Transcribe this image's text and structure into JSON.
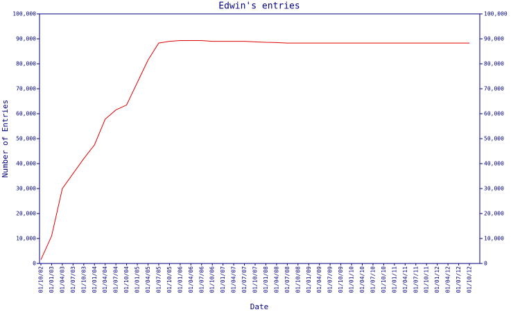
{
  "chart_data": {
    "type": "line",
    "title": "Edwin's entries",
    "x_label": "Date",
    "y_label": "Number of Entries",
    "categories": [
      "01/10/02",
      "01/01/03",
      "01/04/03",
      "01/07/03",
      "01/10/03",
      "01/01/04",
      "01/04/04",
      "01/07/04",
      "01/10/04",
      "01/01/05",
      "01/04/05",
      "01/07/05",
      "01/10/05",
      "01/01/06",
      "01/04/06",
      "01/07/06",
      "01/10/06",
      "01/01/07",
      "01/04/07",
      "01/07/07",
      "01/10/07",
      "01/01/08",
      "01/04/08",
      "01/07/08",
      "01/10/08",
      "01/01/09",
      "01/04/09",
      "01/07/09",
      "01/10/09",
      "01/01/10",
      "01/04/10",
      "01/07/10",
      "01/10/10",
      "01/01/11",
      "01/04/11",
      "01/07/11",
      "01/10/11",
      "01/01/12",
      "01/04/12",
      "01/07/12",
      "01/10/12"
    ],
    "series": [
      {
        "name": "entries",
        "color": "#e00000",
        "values": [
          1500,
          11000,
          30000,
          36000,
          42000,
          47500,
          57800,
          61500,
          63500,
          72500,
          81500,
          88300,
          89000,
          89300,
          89300,
          89300,
          89000,
          89000,
          89000,
          89000,
          88800,
          88600,
          88500,
          88300,
          88300,
          88300,
          88300,
          88300,
          88300,
          88300,
          88300,
          88300,
          88300,
          88300,
          88300,
          88300,
          88300,
          88300,
          88300,
          88300,
          88300
        ]
      }
    ],
    "ylim": [
      0,
      100000
    ],
    "yticks": [
      0,
      {
        "value": 10000,
        "label": "10,000"
      },
      {
        "value": 20000,
        "label": "20,000"
      },
      {
        "value": 30000,
        "label": "30,000"
      },
      {
        "value": 40000,
        "label": "40,000"
      },
      {
        "value": 50000,
        "label": "50,000"
      },
      {
        "value": 60000,
        "label": "60,000"
      },
      {
        "value": 70000,
        "label": "70,000"
      },
      {
        "value": 80000,
        "label": "80,000"
      },
      {
        "value": 90000,
        "label": "90,000"
      },
      {
        "value": 100000,
        "label": "100,000"
      }
    ],
    "y2lim": [
      0,
      100000
    ],
    "y2ticks": [
      0,
      {
        "value": 10000,
        "label": "10,000"
      },
      {
        "value": 20000,
        "label": "20,000"
      },
      {
        "value": 30000,
        "label": "30,000"
      },
      {
        "value": 40000,
        "label": "40,000"
      },
      {
        "value": 50000,
        "label": "50,000"
      },
      {
        "value": 60000,
        "label": "60,000"
      },
      {
        "value": 70000,
        "label": "70,000"
      },
      {
        "value": 80000,
        "label": "80,000"
      },
      {
        "value": 90000,
        "label": "90,000"
      },
      {
        "value": 100000,
        "label": "100,000"
      }
    ],
    "grid": false
  }
}
